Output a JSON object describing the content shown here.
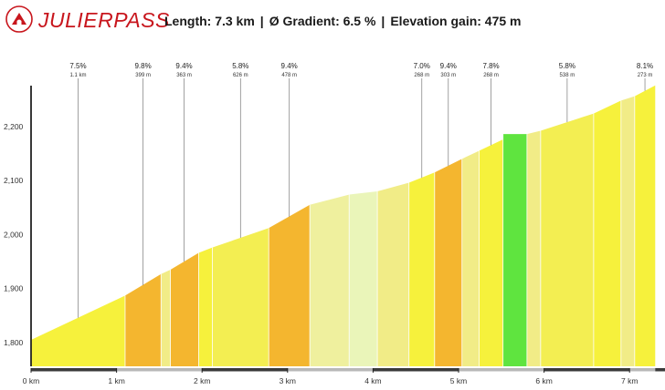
{
  "header": {
    "pass_name": "JULIERPASS",
    "length_label": "Length: 7.3 km",
    "gradient_label": "Ø Gradient: 6.5 %",
    "gain_label": "Elevation gain: 475 m",
    "separator": "|",
    "logo_color": "#c8161d"
  },
  "chart_data": {
    "type": "area",
    "title": "JULIERPASS",
    "subtitle": "Length: 7.3 km | Ø Gradient: 6.5 % | Elevation gain: 475 m",
    "xlabel": "",
    "ylabel": "",
    "xlim": [
      0,
      7.3
    ],
    "ylim": [
      1750,
      2280
    ],
    "x_ticks": [
      0,
      1,
      2,
      3,
      4,
      5,
      6,
      7
    ],
    "x_tick_labels": [
      "0 km",
      "1 km",
      "2 km",
      "3 km",
      "4 km",
      "5 km",
      "6 km",
      "7 km"
    ],
    "y_ticks": [
      1800,
      1900,
      2000,
      2100,
      2200
    ],
    "y_tick_labels": [
      "1,800",
      "1,900",
      "2,000",
      "2,100",
      "2,200"
    ],
    "grid": false,
    "segments": [
      {
        "x0": 0.0,
        "x1": 1.1,
        "y0": 1805,
        "y1": 1887,
        "color": "#f6f13c"
      },
      {
        "x0": 1.1,
        "x1": 1.52,
        "y0": 1887,
        "y1": 1927,
        "color": "#f4b62f"
      },
      {
        "x0": 1.52,
        "x1": 1.63,
        "y0": 1927,
        "y1": 1935,
        "color": "#f1ec87"
      },
      {
        "x0": 1.63,
        "x1": 1.96,
        "y0": 1935,
        "y1": 1966,
        "color": "#f4b62f"
      },
      {
        "x0": 1.96,
        "x1": 2.12,
        "y0": 1966,
        "y1": 1976,
        "color": "#f6f13c"
      },
      {
        "x0": 2.12,
        "x1": 2.78,
        "y0": 1976,
        "y1": 2012,
        "color": "#f3ee52"
      },
      {
        "x0": 2.78,
        "x1": 3.26,
        "y0": 2012,
        "y1": 2055,
        "color": "#f4b62f"
      },
      {
        "x0": 3.26,
        "x1": 3.72,
        "y0": 2055,
        "y1": 2074,
        "color": "#eff09e"
      },
      {
        "x0": 3.72,
        "x1": 4.05,
        "y0": 2074,
        "y1": 2080,
        "color": "#eaf5b9"
      },
      {
        "x0": 4.05,
        "x1": 4.42,
        "y0": 2080,
        "y1": 2096,
        "color": "#f1ec87"
      },
      {
        "x0": 4.42,
        "x1": 4.72,
        "y0": 2096,
        "y1": 2115,
        "color": "#f6f13c"
      },
      {
        "x0": 4.72,
        "x1": 5.04,
        "y0": 2115,
        "y1": 2140,
        "color": "#f4b62f"
      },
      {
        "x0": 5.04,
        "x1": 5.24,
        "y0": 2140,
        "y1": 2155,
        "color": "#f1ec87"
      },
      {
        "x0": 5.24,
        "x1": 5.52,
        "y0": 2155,
        "y1": 2176,
        "color": "#f6f13c"
      },
      {
        "x0": 5.52,
        "x1": 5.8,
        "y0": 2186,
        "y1": 2186,
        "color": "#5fe43f"
      },
      {
        "x0": 5.8,
        "x1": 5.96,
        "y0": 2186,
        "y1": 2192,
        "color": "#f1ec87"
      },
      {
        "x0": 5.96,
        "x1": 6.58,
        "y0": 2192,
        "y1": 2224,
        "color": "#f3ee52"
      },
      {
        "x0": 6.58,
        "x1": 6.9,
        "y0": 2224,
        "y1": 2248,
        "color": "#f6f13c"
      },
      {
        "x0": 6.9,
        "x1": 7.06,
        "y0": 2248,
        "y1": 2256,
        "color": "#f1ec87"
      },
      {
        "x0": 7.06,
        "x1": 7.3,
        "y0": 2256,
        "y1": 2276,
        "color": "#f6f13c"
      }
    ],
    "annotations": [
      {
        "x": 0.55,
        "y": 1846,
        "gradient": "7.5%",
        "length": "1.1 km"
      },
      {
        "x": 1.31,
        "y": 1906,
        "gradient": "9.8%",
        "length": "399 m"
      },
      {
        "x": 1.79,
        "y": 1950,
        "gradient": "9.4%",
        "length": "363 m"
      },
      {
        "x": 2.45,
        "y": 1994,
        "gradient": "5.8%",
        "length": "626 m"
      },
      {
        "x": 3.02,
        "y": 2033,
        "gradient": "9.4%",
        "length": "478 m"
      },
      {
        "x": 4.57,
        "y": 2105,
        "gradient": "7.0%",
        "length": "268 m"
      },
      {
        "x": 4.88,
        "y": 2127,
        "gradient": "9.4%",
        "length": "303 m"
      },
      {
        "x": 5.38,
        "y": 2165,
        "gradient": "7.8%",
        "length": "268 m"
      },
      {
        "x": 6.27,
        "y": 2208,
        "gradient": "5.8%",
        "length": "538 m"
      },
      {
        "x": 7.18,
        "y": 2266,
        "gradient": "8.1%",
        "length": "273 m"
      }
    ]
  }
}
